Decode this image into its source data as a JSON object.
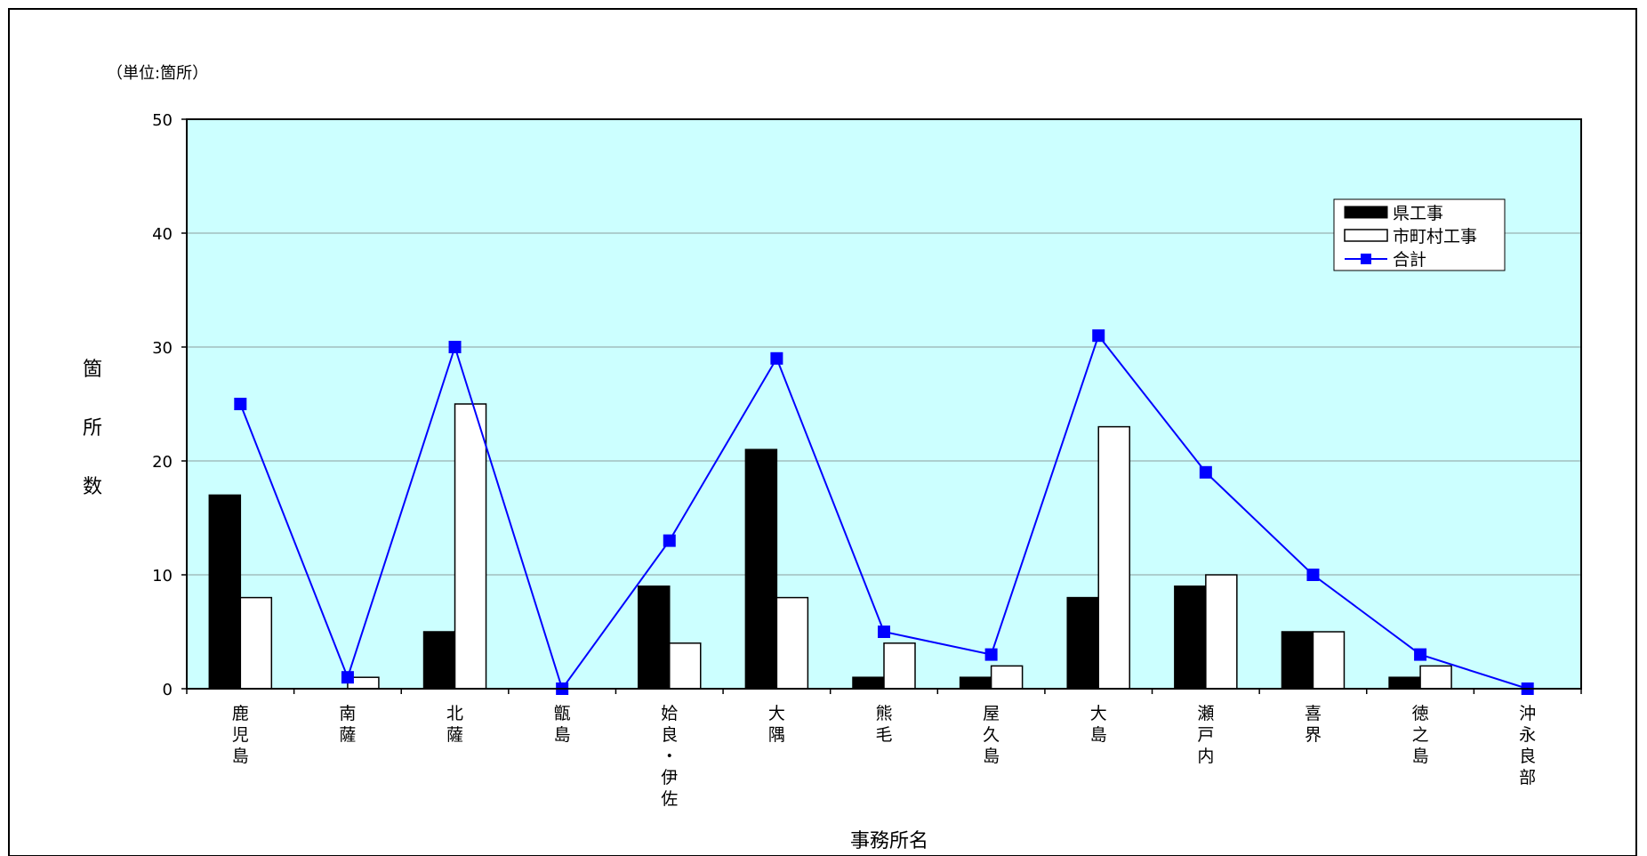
{
  "chart_data": {
    "type": "bar",
    "unit_label": "（単位:箇所）",
    "ylabel": "箇所数",
    "xlabel": "事務所名",
    "ylim": [
      0,
      50
    ],
    "yticks": [
      0,
      10,
      20,
      30,
      40,
      50
    ],
    "grid": true,
    "legend_position": "top-right",
    "categories": [
      "鹿児島",
      "南薩",
      "北薩",
      "甑島",
      "姶良・伊佐",
      "大隅",
      "熊毛",
      "屋久島",
      "大島",
      "瀬戸内",
      "喜界",
      "徳之島",
      "沖永良部"
    ],
    "series": [
      {
        "name": "県工事",
        "kind": "bar",
        "color": "#000000",
        "values": [
          17,
          0,
          5,
          0,
          9,
          21,
          1,
          1,
          8,
          9,
          5,
          1,
          0
        ]
      },
      {
        "name": "市町村工事",
        "kind": "bar",
        "color": "#ffffff",
        "values": [
          8,
          1,
          25,
          0,
          4,
          8,
          4,
          2,
          23,
          10,
          5,
          2,
          0
        ]
      },
      {
        "name": "合計",
        "kind": "line",
        "color": "#0000ff",
        "values": [
          25,
          1,
          30,
          0,
          13,
          29,
          5,
          3,
          31,
          19,
          10,
          3,
          0
        ]
      }
    ],
    "plot_background": "#ccffff"
  }
}
